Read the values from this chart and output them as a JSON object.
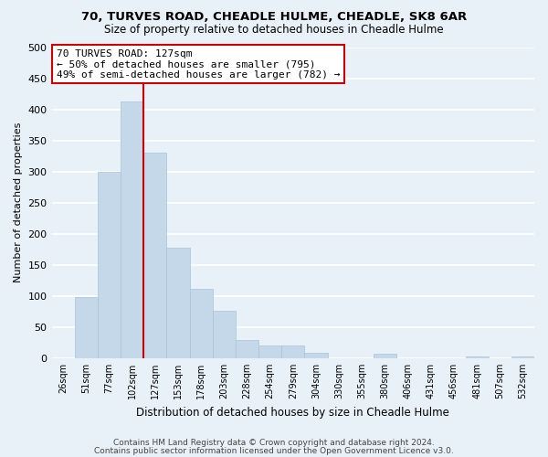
{
  "title": "70, TURVES ROAD, CHEADLE HULME, CHEADLE, SK8 6AR",
  "subtitle": "Size of property relative to detached houses in Cheadle Hulme",
  "xlabel": "Distribution of detached houses by size in Cheadle Hulme",
  "ylabel": "Number of detached properties",
  "bar_labels": [
    "26sqm",
    "51sqm",
    "77sqm",
    "102sqm",
    "127sqm",
    "153sqm",
    "178sqm",
    "203sqm",
    "228sqm",
    "254sqm",
    "279sqm",
    "304sqm",
    "330sqm",
    "355sqm",
    "380sqm",
    "406sqm",
    "431sqm",
    "456sqm",
    "481sqm",
    "507sqm",
    "532sqm"
  ],
  "bar_values": [
    0,
    99,
    300,
    413,
    330,
    178,
    111,
    77,
    29,
    20,
    20,
    8,
    0,
    0,
    7,
    0,
    0,
    0,
    3,
    0,
    3
  ],
  "bar_color": "#c5d8ea",
  "bar_edge_color": "#a8c4d8",
  "highlight_line_color": "#cc0000",
  "annotation_text": "70 TURVES ROAD: 127sqm\n← 50% of detached houses are smaller (795)\n49% of semi-detached houses are larger (782) →",
  "annotation_box_facecolor": "white",
  "annotation_box_edgecolor": "#cc0000",
  "ylim": [
    0,
    500
  ],
  "yticks": [
    0,
    50,
    100,
    150,
    200,
    250,
    300,
    350,
    400,
    450,
    500
  ],
  "footer1": "Contains HM Land Registry data © Crown copyright and database right 2024.",
  "footer2": "Contains public sector information licensed under the Open Government Licence v3.0.",
  "background_color": "#e8f0f8",
  "grid_color": "white",
  "fig_width": 6.0,
  "fig_height": 5.0,
  "dpi": 100
}
